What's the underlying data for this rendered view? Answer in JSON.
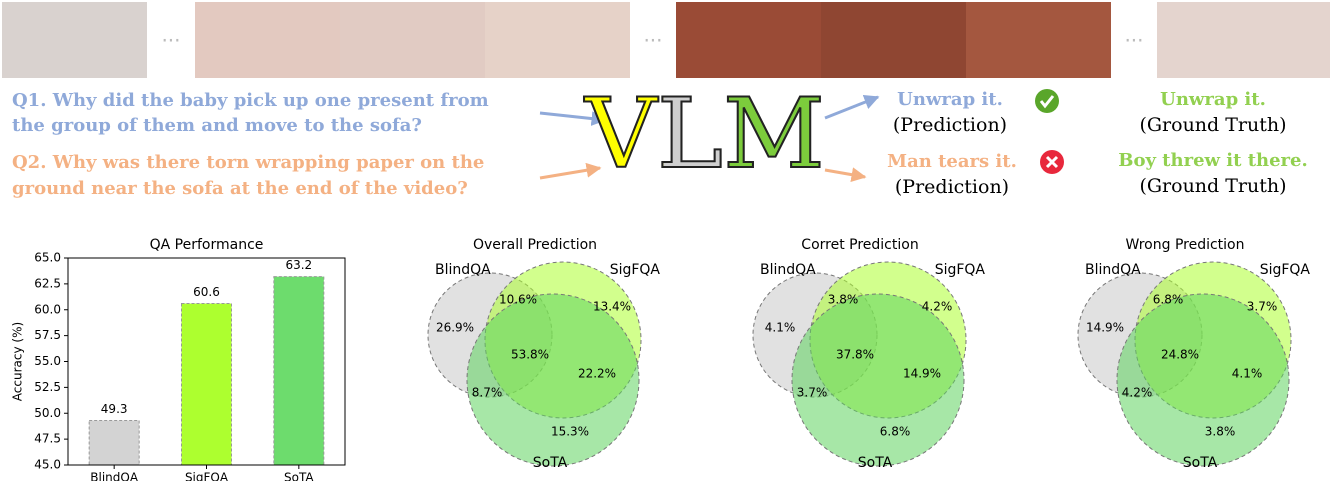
{
  "qa": {
    "questions": [
      {
        "lines": [
          "Q1. Why did the baby pick up one present from",
          "the group of them and move to the sofa?"
        ],
        "prediction": "Unwrap it.",
        "prediction_tag": "(Prediction)",
        "ground_truth": "Unwrap it.",
        "ground_truth_tag": "(Ground Truth)"
      },
      {
        "lines": [
          "Q2. Why was there torn wrapping paper on the",
          "ground near the sofa at the end of the video?"
        ],
        "prediction": "Man tears it.",
        "prediction_tag": "(Prediction)",
        "ground_truth": "Boy threw it there.",
        "ground_truth_tag": "(Ground Truth)"
      }
    ],
    "model": "VLM"
  },
  "chart_data": [
    {
      "type": "bar",
      "title": "QA Performance",
      "ylabel": "Accuracy (%)",
      "categories": [
        "BlindQA",
        "SigFQA",
        "SoTA"
      ],
      "values": [
        49.3,
        60.6,
        63.2
      ],
      "colors": [
        "#d3d3d3",
        "#adff2f",
        "#6ddc6d"
      ],
      "ylim": [
        45,
        65
      ],
      "yticks": [
        {
          "value": 45,
          "label": "45.0"
        },
        {
          "value": 47.5,
          "label": "47.5"
        },
        {
          "value": 50,
          "label": "50.0"
        },
        {
          "value": 52.5,
          "label": "52.5"
        },
        {
          "value": 55,
          "label": "55.0"
        },
        {
          "value": 57.5,
          "label": "57.5"
        },
        {
          "value": 60,
          "label": "60.0"
        },
        {
          "value": 62.5,
          "label": "62.5"
        },
        {
          "value": 65,
          "label": "65.0"
        }
      ]
    },
    {
      "type": "venn",
      "title": "Overall Prediction",
      "sets": [
        "BlindQA",
        "SigFQA",
        "SoTA"
      ],
      "colors": [
        "#c8c8c8",
        "#adff2f",
        "#5fd35f"
      ],
      "values": [
        26.9,
        13.4,
        15.3,
        10.6,
        8.7,
        22.2,
        53.8
      ],
      "value_labels": [
        "26.9%",
        "13.4%",
        "15.3%",
        "10.6%",
        "8.7%",
        "22.2%",
        "53.8%"
      ]
    },
    {
      "type": "venn",
      "title": "Corret Prediction",
      "sets": [
        "BlindQA",
        "SigFQA",
        "SoTA"
      ],
      "colors": [
        "#c8c8c8",
        "#adff2f",
        "#5fd35f"
      ],
      "values": [
        4.1,
        4.2,
        6.8,
        3.8,
        3.7,
        14.9,
        37.8
      ],
      "value_labels": [
        "4.1%",
        "4.2%",
        "6.8%",
        "3.8%",
        "3.7%",
        "14.9%",
        "37.8%"
      ]
    },
    {
      "type": "venn",
      "title": "Wrong Prediction",
      "sets": [
        "BlindQA",
        "SigFQA",
        "SoTA"
      ],
      "colors": [
        "#c8c8c8",
        "#adff2f",
        "#5fd35f"
      ],
      "values": [
        14.9,
        3.7,
        3.8,
        6.8,
        4.2,
        4.1,
        24.8
      ],
      "value_labels": [
        "14.9%",
        "3.7%",
        "3.8%",
        "6.8%",
        "4.2%",
        "4.1%",
        "24.8%"
      ]
    }
  ]
}
